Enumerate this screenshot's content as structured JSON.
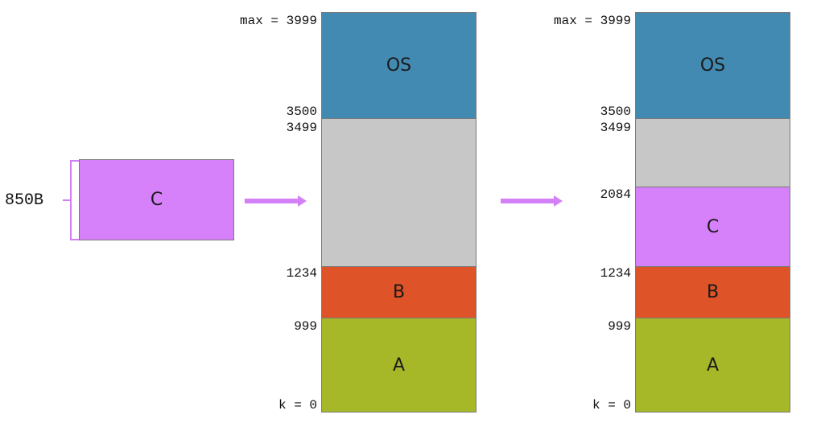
{
  "colors": {
    "os": "#438ab3",
    "free": "#c7c7c7",
    "b": "#de5327",
    "a": "#a6b828",
    "c": "#d680fa",
    "arrow": "#d37ff7"
  },
  "left_block": {
    "size_label": "850B",
    "block_label": "C"
  },
  "memory_before": {
    "os_label": "OS",
    "b_label": "B",
    "a_label": "A",
    "addr_max": "max = 3999",
    "addr_3500": "3500",
    "addr_3499": "3499",
    "addr_1234": "1234",
    "addr_999": "999",
    "addr_k0": "k = 0"
  },
  "memory_after": {
    "os_label": "OS",
    "c_label": "C",
    "b_label": "B",
    "a_label": "A",
    "addr_max": "max = 3999",
    "addr_3500": "3500",
    "addr_3499": "3499",
    "addr_2084": "2084",
    "addr_1234": "1234",
    "addr_999": "999",
    "addr_k0": "k = 0"
  }
}
